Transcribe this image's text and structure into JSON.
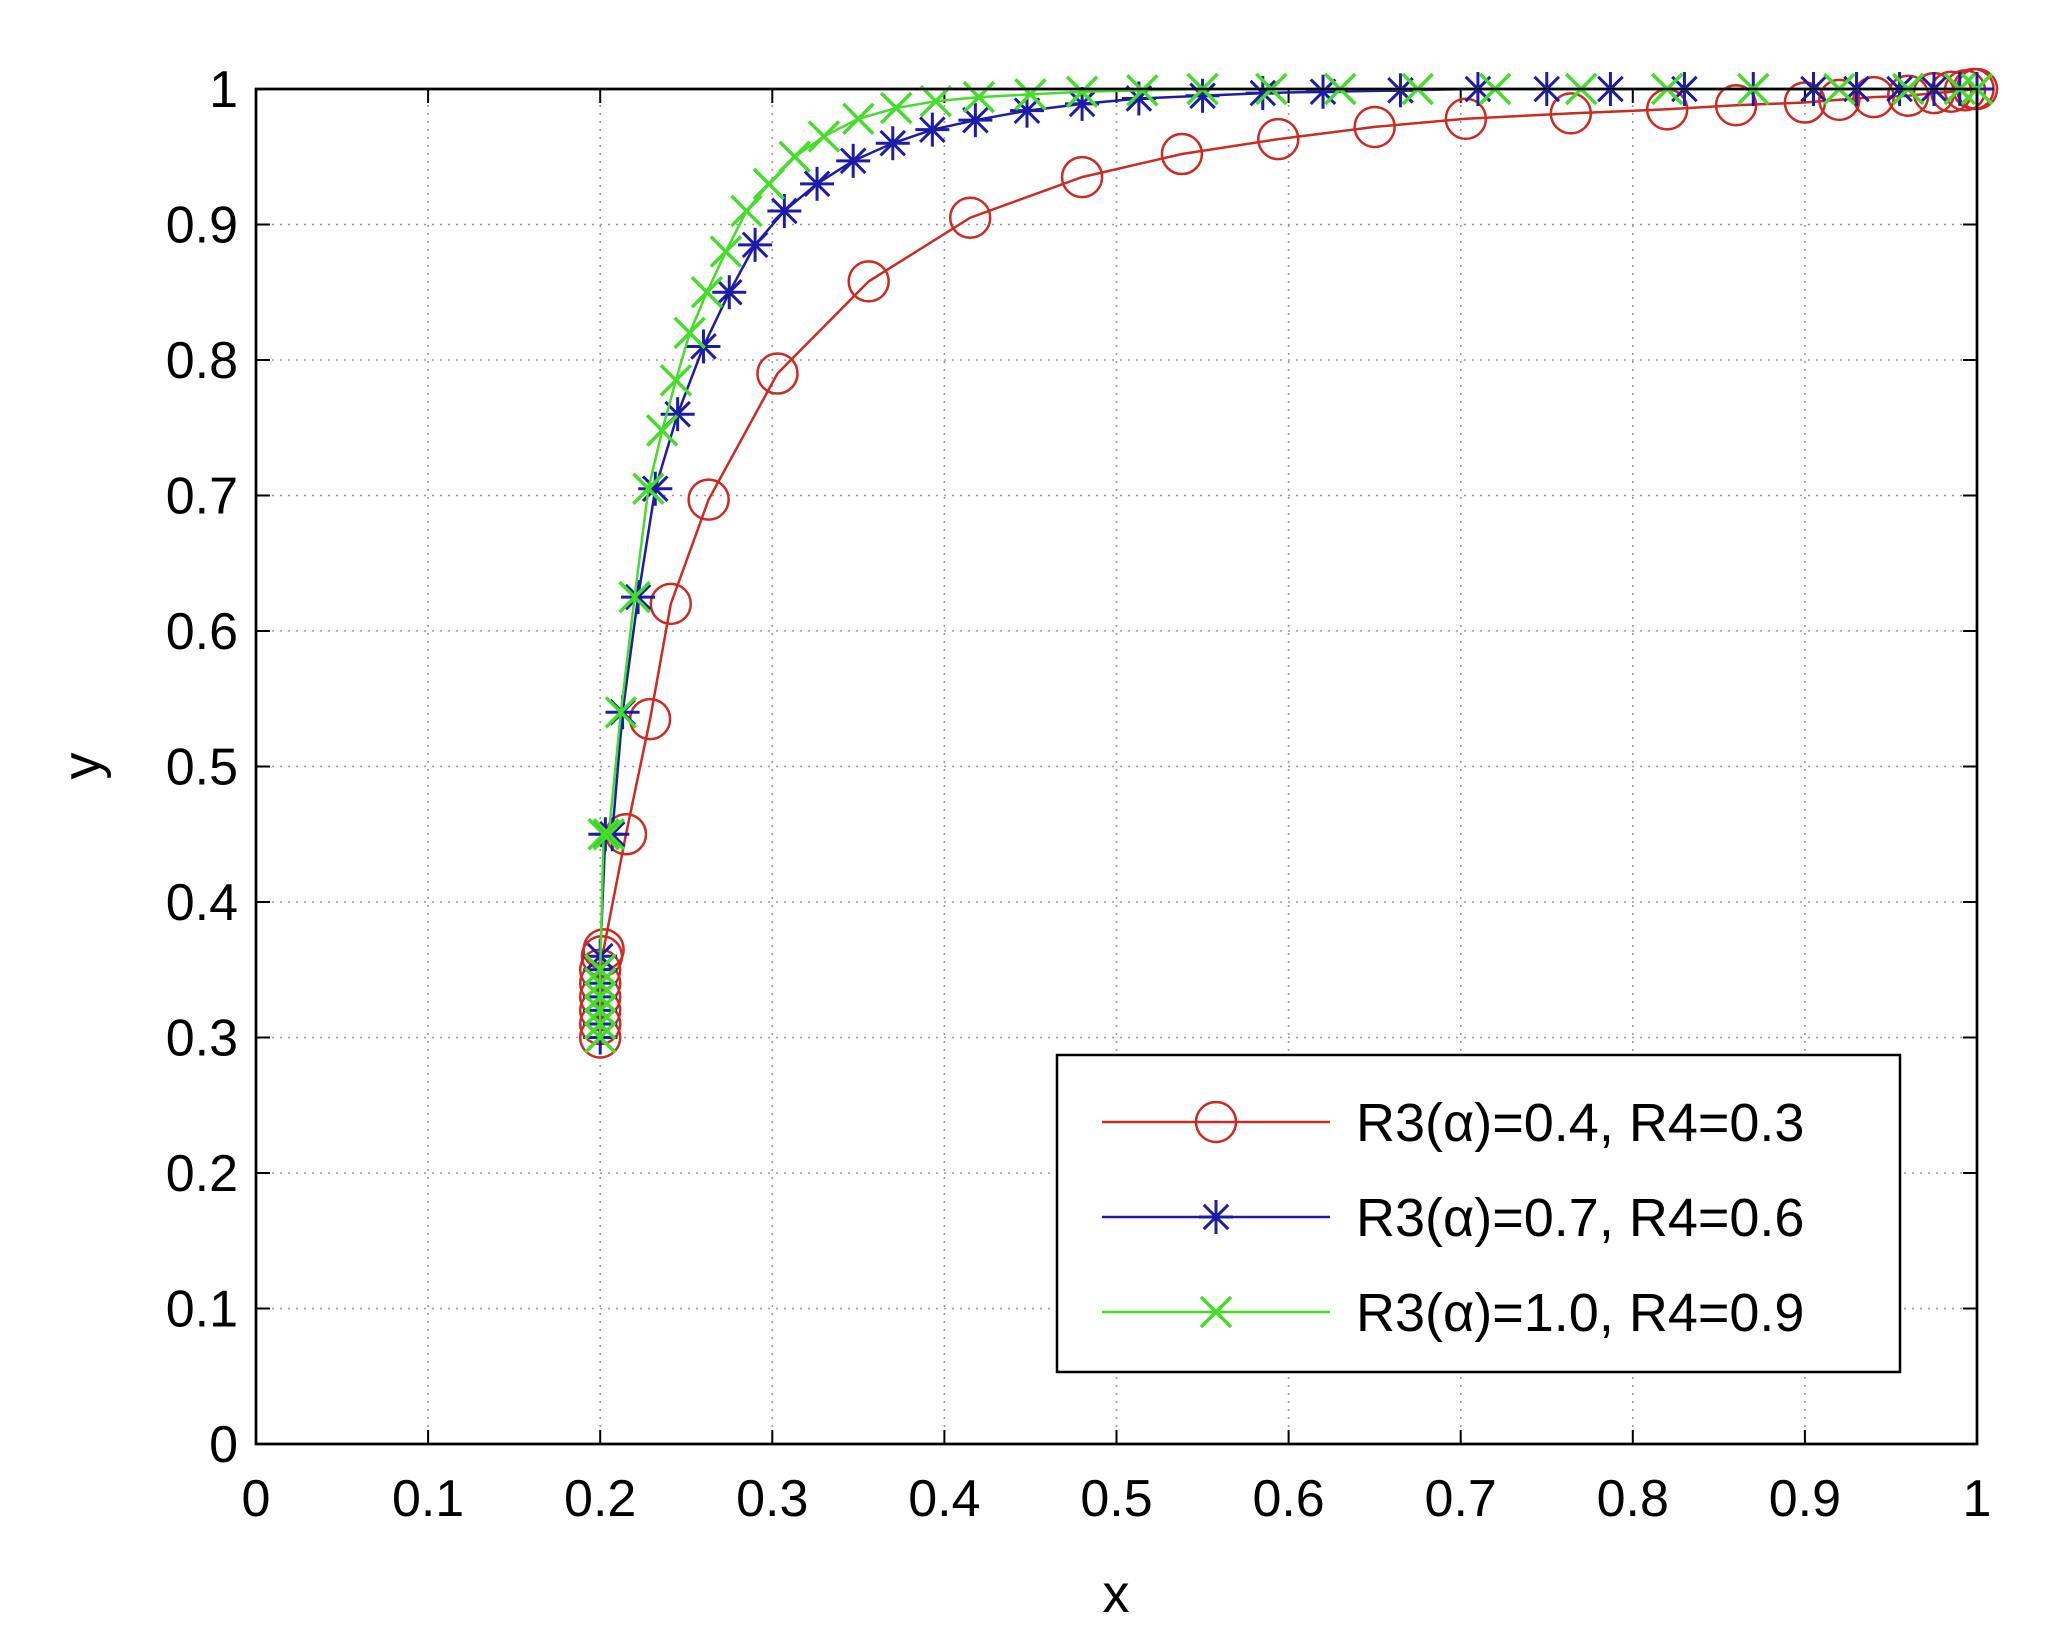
{
  "chart_data": {
    "type": "line",
    "title": "",
    "xlabel": "x",
    "ylabel": "y",
    "xlim": [
      0,
      1
    ],
    "ylim": [
      0,
      1
    ],
    "xticks": [
      "0",
      "0.1",
      "0.2",
      "0.3",
      "0.4",
      "0.5",
      "0.6",
      "0.7",
      "0.8",
      "0.9",
      "1"
    ],
    "yticks": [
      "0",
      "0.1",
      "0.2",
      "0.3",
      "0.4",
      "0.5",
      "0.6",
      "0.7",
      "0.8",
      "0.9",
      "1"
    ],
    "grid": true,
    "legend_position": "bottom-right",
    "series": [
      {
        "name": "R3(α)=0.4, R4=0.3",
        "color": "#cc2a22",
        "marker": "circle",
        "x": [
          0.2,
          0.2,
          0.2,
          0.2,
          0.2,
          0.2,
          0.201,
          0.202,
          0.215,
          0.229,
          0.241,
          0.263,
          0.303,
          0.356,
          0.415,
          0.48,
          0.538,
          0.594,
          0.65,
          0.703,
          0.764,
          0.82,
          0.86,
          0.9,
          0.92,
          0.94,
          0.96,
          0.975,
          0.985,
          0.993,
          0.998,
          1.0
        ],
        "y": [
          0.3,
          0.31,
          0.32,
          0.33,
          0.34,
          0.35,
          0.36,
          0.365,
          0.45,
          0.535,
          0.62,
          0.697,
          0.79,
          0.858,
          0.905,
          0.935,
          0.952,
          0.963,
          0.972,
          0.978,
          0.982,
          0.985,
          0.988,
          0.99,
          0.992,
          0.994,
          0.995,
          0.997,
          0.998,
          0.999,
          1.0,
          1.0
        ]
      },
      {
        "name": "R3(α)=0.7, R4=0.6",
        "color": "#1c1ca8",
        "marker": "asterisk",
        "x": [
          0.2,
          0.2,
          0.2,
          0.2,
          0.2,
          0.2,
          0.2,
          0.203,
          0.207,
          0.213,
          0.222,
          0.232,
          0.245,
          0.26,
          0.275,
          0.29,
          0.307,
          0.326,
          0.347,
          0.37,
          0.393,
          0.418,
          0.448,
          0.48,
          0.513,
          0.55,
          0.585,
          0.62,
          0.665,
          0.71,
          0.75,
          0.787,
          0.83,
          0.87,
          0.905,
          0.93,
          0.955,
          0.975,
          0.99,
          1.0
        ],
        "y": [
          0.3,
          0.31,
          0.32,
          0.33,
          0.34,
          0.35,
          0.36,
          0.45,
          0.45,
          0.54,
          0.625,
          0.705,
          0.76,
          0.81,
          0.85,
          0.885,
          0.91,
          0.93,
          0.947,
          0.96,
          0.97,
          0.977,
          0.984,
          0.989,
          0.993,
          0.995,
          0.997,
          0.998,
          0.999,
          1.0,
          1.0,
          1.0,
          1.0,
          1.0,
          1.0,
          1.0,
          1.0,
          1.0,
          1.0,
          1.0
        ]
      },
      {
        "name": "R3(α)=1.0, R4=0.9",
        "color": "#44dd2a",
        "marker": "x",
        "x": [
          0.2,
          0.2,
          0.2,
          0.2,
          0.2,
          0.2,
          0.202,
          0.205,
          0.212,
          0.22,
          0.228,
          0.236,
          0.244,
          0.252,
          0.262,
          0.273,
          0.285,
          0.298,
          0.313,
          0.33,
          0.35,
          0.372,
          0.395,
          0.42,
          0.45,
          0.48,
          0.515,
          0.55,
          0.59,
          0.63,
          0.675,
          0.72,
          0.77,
          0.82,
          0.87,
          0.92,
          0.96,
          0.99,
          1.0
        ],
        "y": [
          0.3,
          0.31,
          0.32,
          0.33,
          0.34,
          0.35,
          0.45,
          0.45,
          0.54,
          0.625,
          0.705,
          0.748,
          0.785,
          0.82,
          0.85,
          0.88,
          0.91,
          0.93,
          0.95,
          0.965,
          0.978,
          0.986,
          0.991,
          0.994,
          0.996,
          0.998,
          0.999,
          1.0,
          1.0,
          1.0,
          1.0,
          1.0,
          1.0,
          1.0,
          1.0,
          1.0,
          1.0,
          1.0,
          1.0
        ]
      }
    ]
  }
}
